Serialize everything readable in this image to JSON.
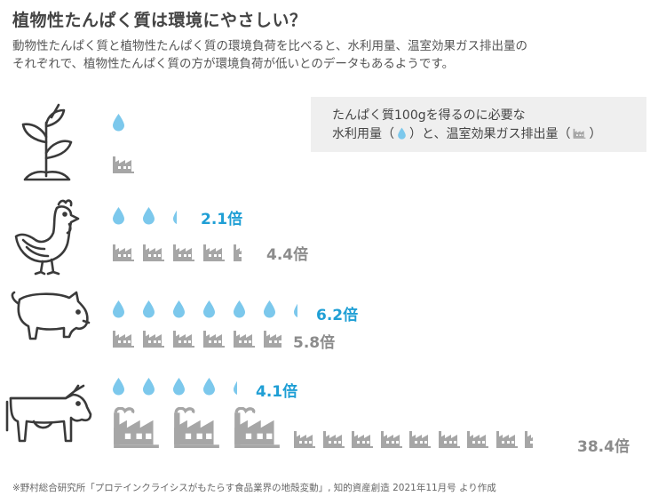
{
  "title": "植物性たんぱく質は環境にやさしい？",
  "subtitle_line1": "動物性たんぱく質と植物性たんぱく質の環境負荷を比べると、水利用量、温室効果ガス排出量の",
  "subtitle_line2": "それぞれで、植物性たんぱく質の方が環境負荷が低いとのデータもあるようです。",
  "legend": {
    "line1": "たんぱく質100gを得るのに必要な",
    "line2_a": "水利用量（",
    "line2_b": "）と、温室効果ガス排出量（",
    "line2_c": "）"
  },
  "colors": {
    "water": "#7cc8ec",
    "gas": "#a6a6a6",
    "blue_text": "#1f9fd5",
    "gray_text": "#8c8c8c"
  },
  "icons": {
    "plant": "sprout-icon",
    "chicken": "chicken-icon",
    "pig": "pig-icon",
    "cow": "cow-icon",
    "water": "water-drop-icon",
    "gas": "factory-icon"
  },
  "rows": [
    {
      "name": "plant",
      "water_ratio": 1,
      "gas_ratio": 1
    },
    {
      "name": "chicken",
      "water_ratio": 2.1,
      "gas_ratio": 4.4,
      "water_label": "2.1倍",
      "gas_label": "4.4倍"
    },
    {
      "name": "pig",
      "water_ratio": 6.2,
      "gas_ratio": 5.8,
      "water_label": "6.2倍",
      "gas_label": "5.8倍"
    },
    {
      "name": "cow",
      "water_ratio": 4.1,
      "gas_ratio": 38.4,
      "water_label": "4.1倍",
      "gas_label": "38.4倍"
    }
  ],
  "footnote": "※野村総合研究所「プロテインクライシスがもたらす食品業界の地殻変動」, 知的資産創造 2021年11月号 より作成"
}
